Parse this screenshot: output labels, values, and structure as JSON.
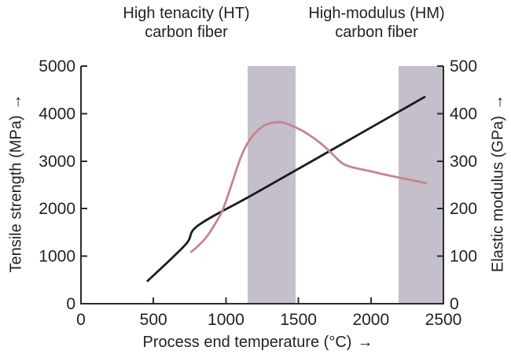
{
  "chart_data": {
    "type": "line",
    "x_axis": {
      "label": "Process end temperature (°C)",
      "arrow": "→",
      "range": [
        0,
        2500
      ],
      "ticks": [
        0,
        500,
        1000,
        1500,
        2000,
        2500
      ]
    },
    "y_axis_left": {
      "label": "Tensile strength (MPa)",
      "arrow": "→",
      "range": [
        0,
        5000
      ],
      "ticks": [
        0,
        1000,
        2000,
        3000,
        4000,
        5000
      ]
    },
    "y_axis_right": {
      "label": "Elastic modulus (GPa)",
      "arrow": "→",
      "range": [
        0,
        500
      ],
      "ticks": [
        0,
        100,
        200,
        300,
        400,
        500
      ]
    },
    "region_annotations": [
      {
        "label_line1": "High tenacity (HT)",
        "label_line2": "carbon fiber",
        "band_x_range": [
          1150,
          1480
        ]
      },
      {
        "label_line1": "High-modulus (HM)",
        "label_line2": "carbon fiber",
        "band_x_range": [
          2190,
          2500
        ]
      }
    ],
    "band_color": "#c5bfcb",
    "grid": false,
    "legend": "none",
    "series": [
      {
        "name": "Elastic modulus (GPa)",
        "axis": "right",
        "color": "#1c1c1c",
        "points": [
          [
            460,
            48
          ],
          [
            720,
            124
          ],
          [
            810,
            165
          ],
          [
            1200,
            232
          ],
          [
            1800,
            336
          ],
          [
            2370,
            435
          ]
        ]
      },
      {
        "name": "Tensile strength (MPa)",
        "axis": "left",
        "color": "#c4868e",
        "points": [
          [
            760,
            1090
          ],
          [
            810,
            1220
          ],
          [
            870,
            1420
          ],
          [
            925,
            1680
          ],
          [
            980,
            1990
          ],
          [
            1040,
            2520
          ],
          [
            1100,
            3060
          ],
          [
            1160,
            3430
          ],
          [
            1240,
            3700
          ],
          [
            1310,
            3800
          ],
          [
            1380,
            3820
          ],
          [
            1460,
            3740
          ],
          [
            1560,
            3580
          ],
          [
            1660,
            3360
          ],
          [
            1740,
            3130
          ],
          [
            1800,
            2960
          ],
          [
            1860,
            2880
          ],
          [
            1980,
            2800
          ],
          [
            2120,
            2700
          ],
          [
            2250,
            2620
          ],
          [
            2380,
            2540
          ]
        ]
      }
    ],
    "axis_color": "#2b2b2b",
    "text_color": "#231f20"
  }
}
